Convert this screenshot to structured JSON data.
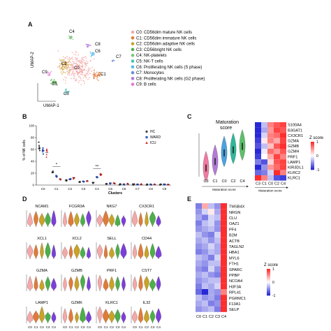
{
  "figure": {
    "panel_labels": [
      "A",
      "B",
      "C",
      "D",
      "E"
    ]
  },
  "panel_a": {
    "xlabel": "UMAP-1",
    "ylabel": "UMAP-2",
    "cluster_labels": [
      "C0",
      "C1",
      "C2",
      "C3",
      "C4",
      "C5",
      "C6",
      "C7",
      "C8",
      "C9"
    ],
    "legend": [
      {
        "label": "C0: CD56dim mature NK cells",
        "color": "#f4a9a8"
      },
      {
        "label": "C1: CD56dim immature NK cells",
        "color": "#e07b39"
      },
      {
        "label": "C2: CD56dim adaptive NK cells",
        "color": "#c9a227"
      },
      {
        "label": "C3: CD56bright NK cells",
        "color": "#4daf4a"
      },
      {
        "label": "C4: NK-platelets",
        "color": "#7cc47a"
      },
      {
        "label": "C5: NK-T cells",
        "color": "#45c1b8"
      },
      {
        "label": "C6: Proliferating NK cells (S phase)",
        "color": "#5bb8e8"
      },
      {
        "label": "C7: Monocytes",
        "color": "#6a8fd8"
      },
      {
        "label": "C8: Proliferating NK cells (G2 phase)",
        "color": "#b27ad8"
      },
      {
        "label": "C9: B cells",
        "color": "#e47ad6"
      }
    ]
  },
  "panel_b": {
    "ylabel": "% of NK cells",
    "xlabel": "Clusters",
    "yticks": [
      "0",
      "20",
      "40",
      "60",
      "80",
      "100"
    ],
    "categories": [
      "C0",
      "C1",
      "C2",
      "C3",
      "C4",
      "C5",
      "C6",
      "C7",
      "C8",
      "C9"
    ],
    "legend": [
      {
        "label": "HC",
        "color": "#3f3f3f"
      },
      {
        "label": "WARD",
        "color": "#3a5fcd"
      },
      {
        "label": "ICU",
        "color": "#d62728"
      }
    ],
    "significance": [
      {
        "category": "C1",
        "mark": "*"
      },
      {
        "category": "C4",
        "mark": "**"
      }
    ],
    "chart_data": {
      "type": "scatter",
      "categories": [
        "C0",
        "C1",
        "C2",
        "C3",
        "C4",
        "C5",
        "C6",
        "C7",
        "C8",
        "C9"
      ],
      "ylim": [
        0,
        100
      ],
      "series": [
        {
          "name": "HC",
          "values": [
            62,
            22,
            8,
            5,
            4,
            2,
            1,
            1,
            1,
            1
          ]
        },
        {
          "name": "WARD",
          "values": [
            58,
            15,
            10,
            6,
            13,
            3,
            1,
            1,
            1,
            1
          ]
        },
        {
          "name": "ICU",
          "values": [
            55,
            10,
            12,
            7,
            18,
            3,
            2,
            1,
            1,
            1
          ]
        }
      ]
    }
  },
  "panel_c": {
    "violin_title": "Maturation\nscore",
    "violin_categories": [
      "C3",
      "C1",
      "C0",
      "C2",
      "C4"
    ],
    "violin_axis_label": "Maturation score",
    "heat_genes": [
      "S100A4",
      "B3GAT1",
      "CX3CR1",
      "GZMA",
      "GZMB",
      "GZMH",
      "PRF1",
      "LAMP1",
      "KIR3DL1",
      "KLRC2",
      "KLRC1"
    ],
    "heat_columns": [
      "C3",
      "C1",
      "C0",
      "C2",
      "C4"
    ],
    "heat_axis_label": "Maturation score",
    "colorbar_title": "Z score",
    "colorbar_ticks": [
      "1",
      "0",
      "-1"
    ],
    "heat_values": [
      [
        -1.0,
        -0.3,
        0.6,
        0.8,
        0.9
      ],
      [
        -1.0,
        -0.4,
        0.5,
        0.9,
        0.8
      ],
      [
        -1.0,
        -0.2,
        0.6,
        0.7,
        1.0
      ],
      [
        -0.9,
        0.1,
        0.6,
        0.4,
        0.9
      ],
      [
        -0.8,
        -0.3,
        0.3,
        0.8,
        1.0
      ],
      [
        -1.0,
        -0.1,
        0.7,
        0.5,
        0.8
      ],
      [
        -0.9,
        0.0,
        0.4,
        0.9,
        0.6
      ],
      [
        -0.6,
        -0.8,
        0.2,
        0.8,
        0.9
      ],
      [
        -1.0,
        -0.5,
        0.5,
        0.7,
        0.9
      ],
      [
        -0.7,
        -0.6,
        -0.2,
        1.0,
        0.6
      ],
      [
        1.0,
        0.6,
        -0.3,
        -0.8,
        -0.9
      ]
    ]
  },
  "panel_d": {
    "genes": [
      "NCAM1",
      "FCGR3A",
      "NKG7",
      "CX3CR1",
      "XCL1",
      "XCL2",
      "SELL",
      "CD44",
      "GZMA",
      "GZMB",
      "PRF1",
      "CST7",
      "LAMP1",
      "GZMK",
      "KLRC1",
      "IL32"
    ],
    "x_categories": [
      "C0",
      "C1",
      "C2",
      "C3",
      "C4"
    ],
    "violin_colors": [
      "#f4a9a8",
      "#e07b39",
      "#c9a227",
      "#4daf4a",
      "#7c3fd8"
    ]
  },
  "panel_e": {
    "genes": [
      "TMSB4X",
      "NRGN",
      "CLU",
      "OAZ1",
      "PF4",
      "B2M",
      "ACTB",
      "TAGLN2",
      "HBA1",
      "MYL6",
      "FTH1",
      "SPARC",
      "PPBP",
      "NCOA4",
      "H3F3A",
      "RPL41",
      "PGRMC1",
      "F13A1",
      "SELP"
    ],
    "columns": [
      "C0",
      "C1",
      "C2",
      "C3",
      "C4"
    ],
    "colorbar_title": "Z score",
    "colorbar_ticks": [
      "1",
      "0",
      "-1"
    ],
    "heat_values": [
      [
        -0.6,
        0.4,
        -0.3,
        -0.5,
        1.0
      ],
      [
        -0.5,
        -0.2,
        0.1,
        -0.4,
        1.0
      ],
      [
        -0.4,
        -0.6,
        -0.2,
        -0.3,
        1.0
      ],
      [
        -0.6,
        -0.3,
        -0.2,
        -0.5,
        1.0
      ],
      [
        -0.5,
        -0.4,
        -0.3,
        -0.5,
        1.0
      ],
      [
        -0.3,
        -0.5,
        -0.6,
        -0.2,
        1.0
      ],
      [
        -0.4,
        -0.3,
        -0.5,
        -0.3,
        1.0
      ],
      [
        -0.5,
        -0.4,
        -0.2,
        -0.4,
        1.0
      ],
      [
        -0.6,
        -0.5,
        -0.3,
        -0.4,
        1.0
      ],
      [
        -0.3,
        -0.4,
        -0.6,
        -0.2,
        1.0
      ],
      [
        -0.4,
        -0.5,
        -0.3,
        -0.3,
        1.0
      ],
      [
        -0.5,
        -0.6,
        -0.2,
        -0.5,
        1.0
      ],
      [
        -0.4,
        -0.3,
        -0.5,
        -0.6,
        1.0
      ],
      [
        -0.5,
        -0.4,
        -0.3,
        -0.3,
        1.0
      ],
      [
        -0.6,
        -0.3,
        -0.4,
        -0.2,
        1.0
      ],
      [
        -0.7,
        -1.0,
        -0.4,
        -0.5,
        0.6
      ],
      [
        -0.3,
        -0.5,
        -0.4,
        -0.6,
        1.0
      ],
      [
        -0.4,
        -0.3,
        -0.6,
        -0.5,
        1.0
      ],
      [
        -0.5,
        -0.4,
        -0.3,
        -0.6,
        1.0
      ]
    ]
  }
}
